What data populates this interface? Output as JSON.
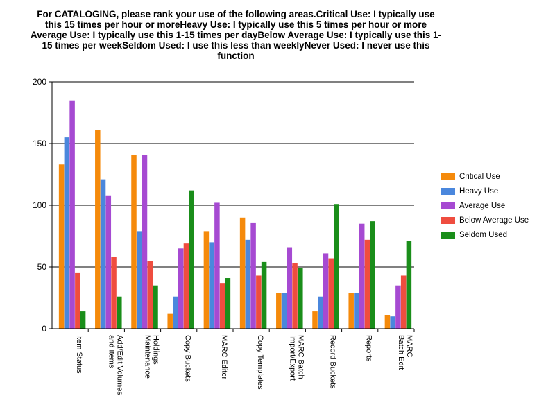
{
  "chart_data": {
    "type": "bar",
    "title": "For CATALOGING, please rank your use of the following areas.Critical Use: I typically use this 15 times per hour or moreHeavy Use: I typically use this 5 times per hour or more Average Use: I typically use this 1-15 times per dayBelow Average Use: I typically use this 1-15 times per weekSeldom Used: I use this less than weeklyNever Used: I never use this function",
    "xlabel": "",
    "ylabel": "",
    "ylim": [
      0,
      200
    ],
    "yticks": [
      0,
      50,
      100,
      150,
      200
    ],
    "grid": true,
    "legend_position": "right",
    "categories": [
      "Item Status",
      "Add/Edit Volumes and Items",
      "Holdings Maintenance",
      "Copy Buckets",
      "MARC Editor",
      "Copy Templates",
      "MARC Batch Import/Export",
      "Record Buckets",
      "Reports",
      "MARC Batch Edit"
    ],
    "series": [
      {
        "name": "Critical Use",
        "color": "#f58a0b",
        "values": [
          133,
          161,
          141,
          12,
          79,
          90,
          29,
          14,
          29,
          11
        ]
      },
      {
        "name": "Heavy Use",
        "color": "#4a87dd",
        "values": [
          155,
          121,
          79,
          26,
          70,
          72,
          29,
          26,
          29,
          10
        ]
      },
      {
        "name": "Average Use",
        "color": "#a64ad2",
        "values": [
          185,
          108,
          141,
          65,
          102,
          86,
          66,
          61,
          85,
          35
        ]
      },
      {
        "name": "Below Average Use",
        "color": "#ef4d3f",
        "values": [
          45,
          58,
          55,
          69,
          37,
          43,
          53,
          57,
          72,
          43
        ]
      },
      {
        "name": "Seldom Used",
        "color": "#1a8e1a",
        "values": [
          14,
          26,
          35,
          112,
          41,
          54,
          49,
          101,
          87,
          71
        ]
      }
    ]
  }
}
